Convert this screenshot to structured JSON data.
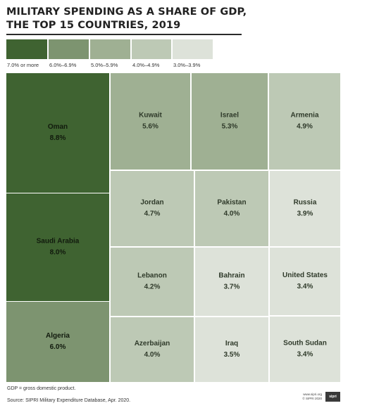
{
  "title": {
    "line1": "MILITARY SPENDING AS A SHARE OF GDP,",
    "line2": "THE TOP 15 COUNTRIES, 2019"
  },
  "legend": [
    {
      "label": "7.0% or more",
      "color": "#3f6331"
    },
    {
      "label": "6.0%–6.9%",
      "color": "#7d9470"
    },
    {
      "label": "5.0%–5.9%",
      "color": "#9fb093"
    },
    {
      "label": "4.0%–4.9%",
      "color": "#bdc9b5"
    },
    {
      "label": "3.0%–3.9%",
      "color": "#dde2d9"
    }
  ],
  "chart_data": {
    "type": "treemap",
    "unit": "%",
    "items": [
      {
        "name": "Oman",
        "value": 8.8,
        "label": "8.8%",
        "color": "#3f6331"
      },
      {
        "name": "Saudi Arabia",
        "value": 8.0,
        "label": "8.0%",
        "color": "#3f6331"
      },
      {
        "name": "Algeria",
        "value": 6.0,
        "label": "6.0%",
        "color": "#7d9470"
      },
      {
        "name": "Kuwait",
        "value": 5.6,
        "label": "5.6%",
        "color": "#9fb093"
      },
      {
        "name": "Israel",
        "value": 5.3,
        "label": "5.3%",
        "color": "#9fb093"
      },
      {
        "name": "Armenia",
        "value": 4.9,
        "label": "4.9%",
        "color": "#bdc9b5"
      },
      {
        "name": "Jordan",
        "value": 4.7,
        "label": "4.7%",
        "color": "#bdc9b5"
      },
      {
        "name": "Pakistan",
        "value": 4.0,
        "label": "4.0%",
        "color": "#bdc9b5"
      },
      {
        "name": "Russia",
        "value": 3.9,
        "label": "3.9%",
        "color": "#dde2d9"
      },
      {
        "name": "Lebanon",
        "value": 4.2,
        "label": "4.2%",
        "color": "#bdc9b5"
      },
      {
        "name": "Bahrain",
        "value": 3.7,
        "label": "3.7%",
        "color": "#dde2d9"
      },
      {
        "name": "United States",
        "value": 3.4,
        "label": "3.4%",
        "color": "#dde2d9"
      },
      {
        "name": "Azerbaijan",
        "value": 4.0,
        "label": "4.0%",
        "color": "#bdc9b5"
      },
      {
        "name": "Iraq",
        "value": 3.5,
        "label": "3.5%",
        "color": "#dde2d9"
      },
      {
        "name": "South Sudan",
        "value": 3.4,
        "label": "3.4%",
        "color": "#dde2d9"
      }
    ]
  },
  "footer": {
    "note": "GDP = gross domestic product.",
    "source": "Source: SIPRI Military Expenditure Database, Apr. 2020.",
    "logo_url": "www.sipri.org",
    "logo_copyright": "© SIPRI 2020",
    "logo_mark": "sipri"
  }
}
